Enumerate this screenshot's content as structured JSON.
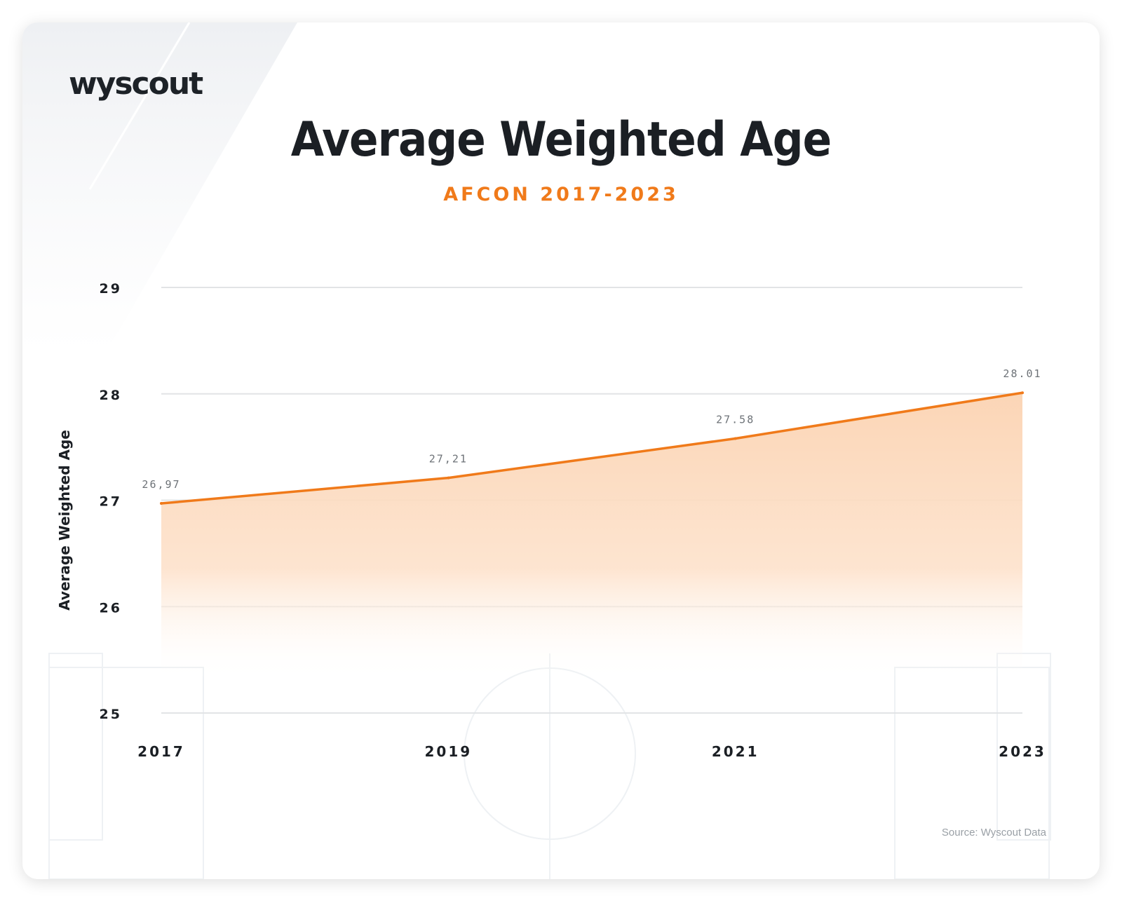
{
  "brand": {
    "logo_text": "wyscout"
  },
  "header": {
    "title": "Average Weighted Age",
    "subtitle": "AFCON 2017-2023"
  },
  "footer": {
    "source": "Source: Wyscout Data"
  },
  "colors": {
    "accent": "#f07a1a",
    "text": "#1b1f24",
    "grid": "#e2e4e6"
  },
  "chart_data": {
    "type": "area",
    "title": "Average Weighted Age",
    "subtitle": "AFCON 2017-2023",
    "xlabel": "",
    "ylabel": "Average Weighted Age",
    "categories": [
      "2017",
      "2019",
      "2021",
      "2023"
    ],
    "values": [
      26.97,
      27.21,
      27.58,
      28.01
    ],
    "data_labels": [
      "26,97",
      "27,21",
      "27.58",
      "28.01"
    ],
    "ylim": [
      25,
      29
    ],
    "yticks": [
      25,
      26,
      27,
      28,
      29
    ],
    "grid": true,
    "legend": "none"
  }
}
